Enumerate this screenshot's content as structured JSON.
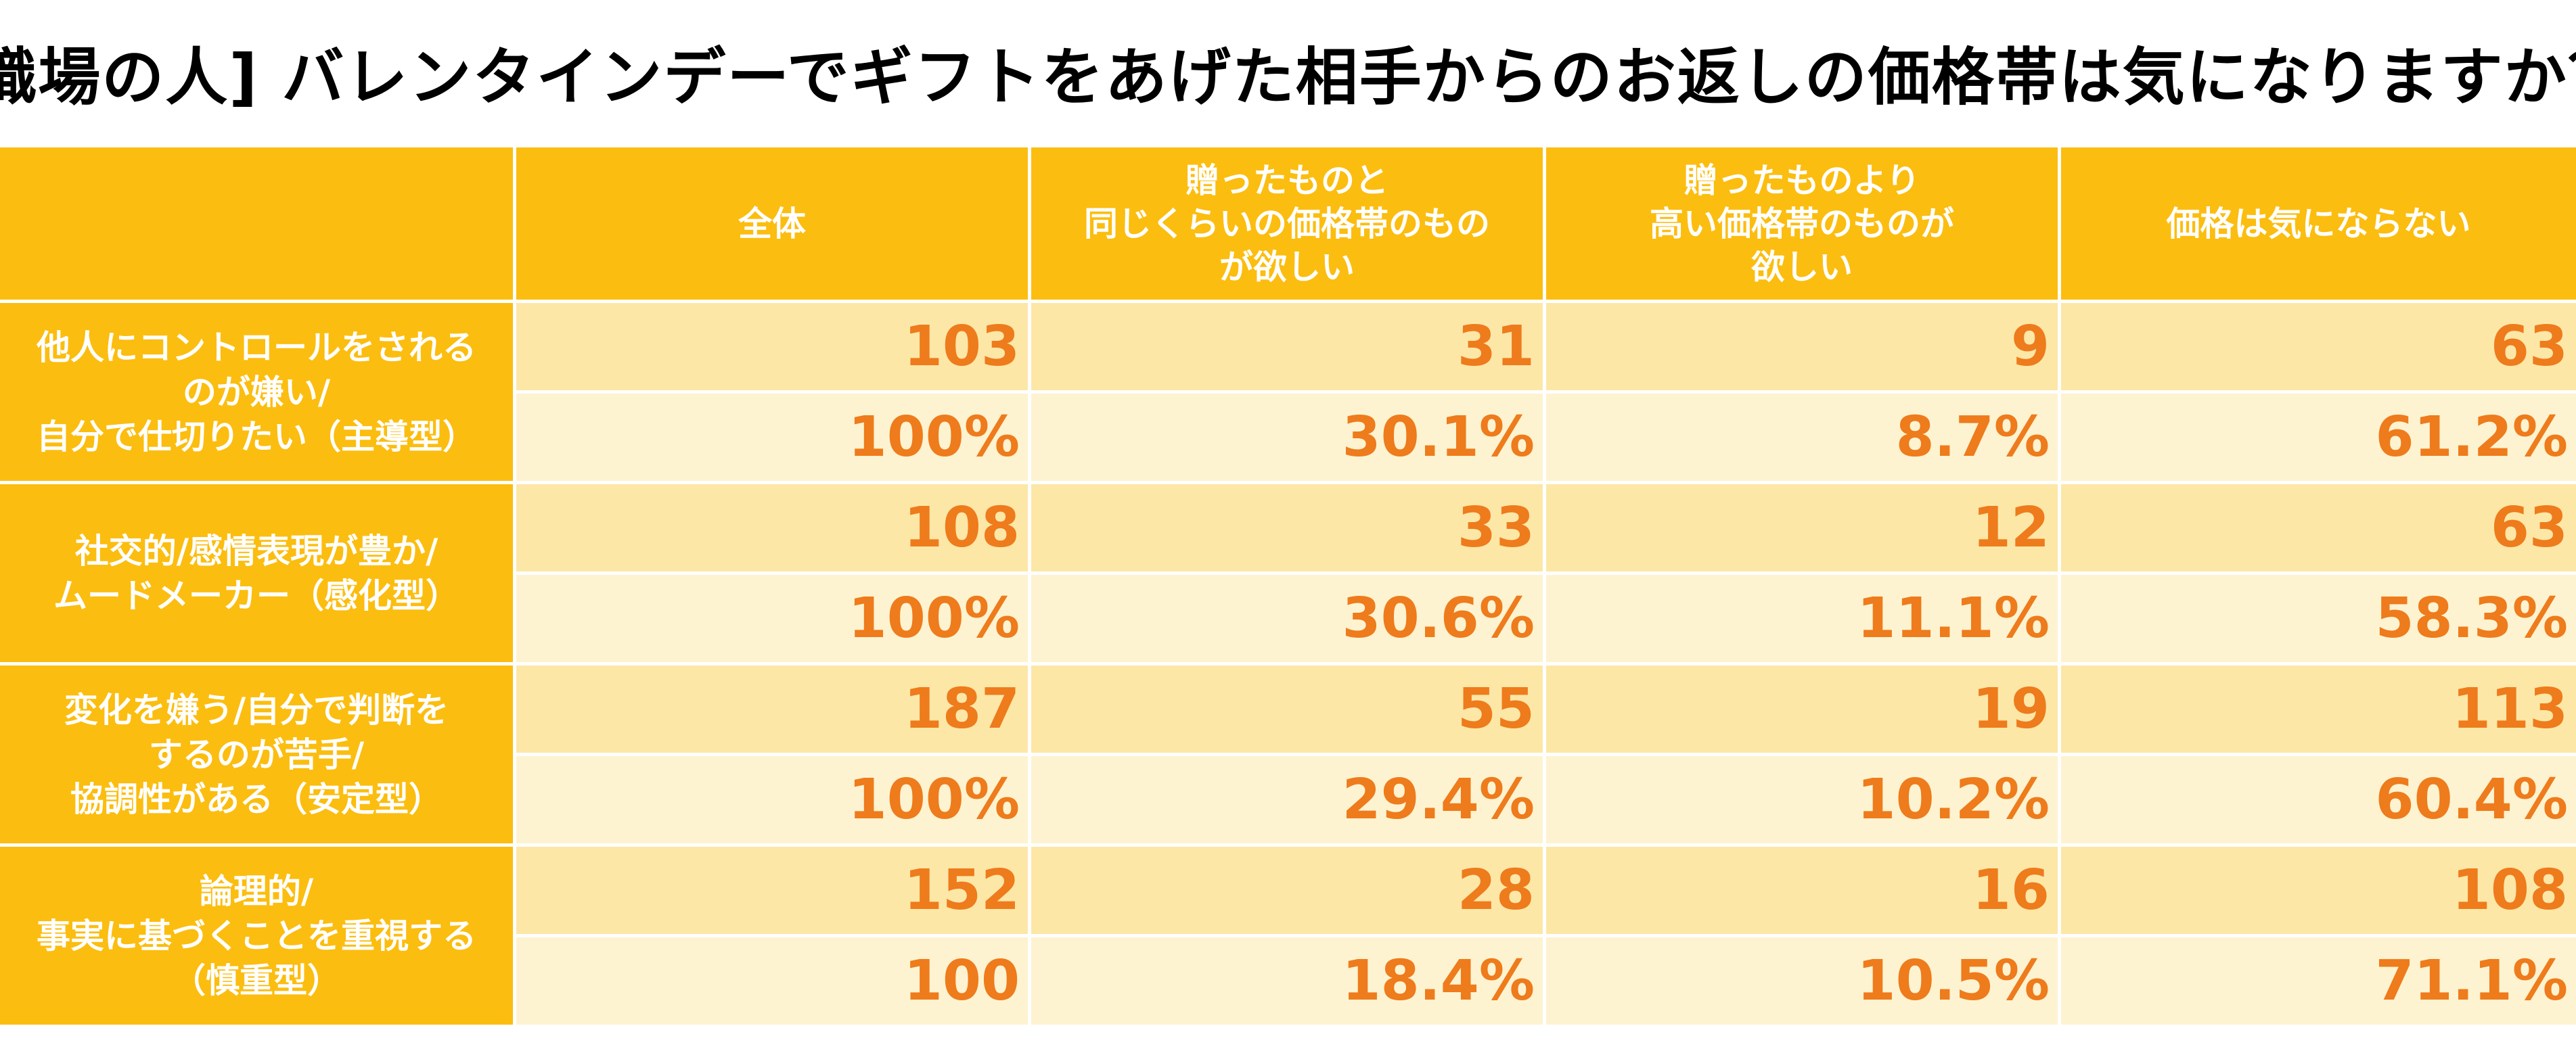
{
  "chart_data": {
    "type": "table",
    "title": "[職場の人] バレンタインデーでギフトをあげた相手からのお返しの価格帯は気になりますか？",
    "columns": [
      "全体",
      "贈ったものと\n同じくらいの価格帯のもの\nが欲しい",
      "贈ったものより\n高い価格帯のものが\n欲しい",
      "価格は気にならない"
    ],
    "rows": [
      {
        "label": "他人にコントロールをされる\nのが嫌い/\n自分で仕切りたい（主導型）",
        "counts": [
          "103",
          "31",
          "9",
          "63"
        ],
        "percents": [
          "100%",
          "30.1%",
          "8.7%",
          "61.2%"
        ]
      },
      {
        "label": "社交的/感情表現が豊か/\nムードメーカー（感化型）",
        "counts": [
          "108",
          "33",
          "12",
          "63"
        ],
        "percents": [
          "100%",
          "30.6%",
          "11.1%",
          "58.3%"
        ]
      },
      {
        "label": "変化を嫌う/自分で判断を\nするのが苦手/\n協調性がある（安定型）",
        "counts": [
          "187",
          "55",
          "19",
          "113"
        ],
        "percents": [
          "100%",
          "29.4%",
          "10.2%",
          "60.4%"
        ]
      },
      {
        "label": "論理的/\n事実に基づくことを重視する\n（慎重型）",
        "counts": [
          "152",
          "28",
          "16",
          "108"
        ],
        "percents": [
          "100",
          "18.4%",
          "10.5%",
          "71.1%"
        ]
      }
    ]
  },
  "colors": {
    "header_bg": "#fbbd0f",
    "header_text": "#ffffff",
    "count_row_bg": "#fde7a7",
    "percent_row_bg": "#fef3d0",
    "value_text": "#ee7b1c"
  }
}
